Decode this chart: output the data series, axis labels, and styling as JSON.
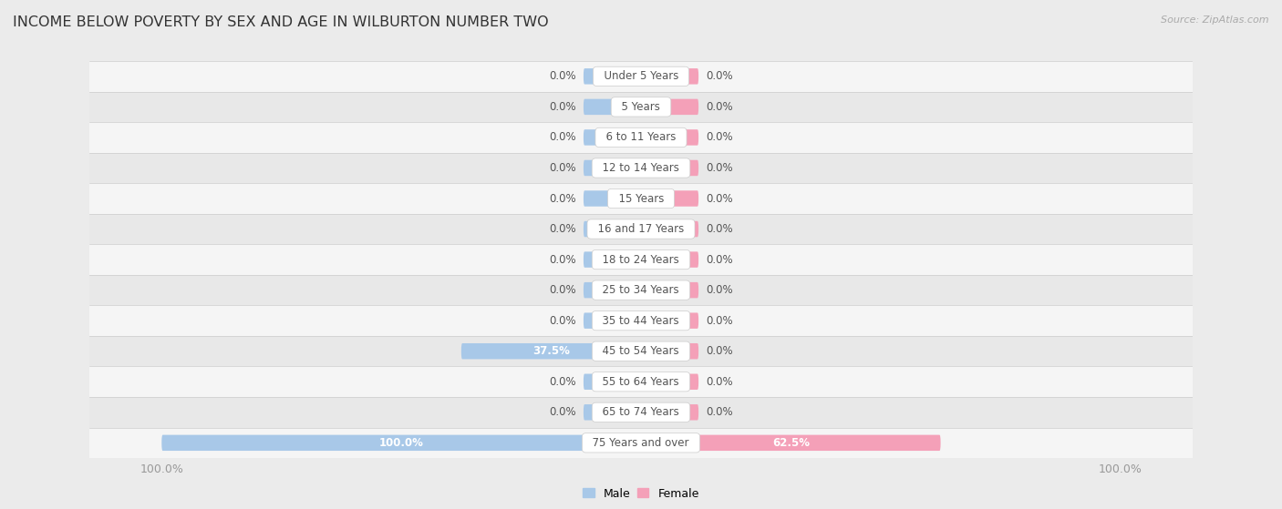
{
  "title": "INCOME BELOW POVERTY BY SEX AND AGE IN WILBURTON NUMBER TWO",
  "source": "Source: ZipAtlas.com",
  "categories": [
    "Under 5 Years",
    "5 Years",
    "6 to 11 Years",
    "12 to 14 Years",
    "15 Years",
    "16 and 17 Years",
    "18 to 24 Years",
    "25 to 34 Years",
    "35 to 44 Years",
    "45 to 54 Years",
    "55 to 64 Years",
    "65 to 74 Years",
    "75 Years and over"
  ],
  "male_values": [
    0.0,
    0.0,
    0.0,
    0.0,
    0.0,
    0.0,
    0.0,
    0.0,
    0.0,
    37.5,
    0.0,
    0.0,
    100.0
  ],
  "female_values": [
    0.0,
    0.0,
    0.0,
    0.0,
    0.0,
    0.0,
    0.0,
    0.0,
    0.0,
    0.0,
    0.0,
    0.0,
    62.5
  ],
  "male_color": "#a8c8e8",
  "female_color": "#f4a0b8",
  "male_label": "Male",
  "female_label": "Female",
  "max_value": 100.0,
  "bg_color": "#ebebeb",
  "row_light_color": "#f5f5f5",
  "row_dark_color": "#e8e8e8",
  "label_color": "#555555",
  "title_color": "#333333",
  "axis_label_color": "#999999",
  "bar_height": 0.52,
  "min_bar_width": 12.0,
  "bar_text_fontsize": 8.5,
  "category_fontsize": 8.5,
  "title_fontsize": 11.5,
  "source_fontsize": 8.0
}
